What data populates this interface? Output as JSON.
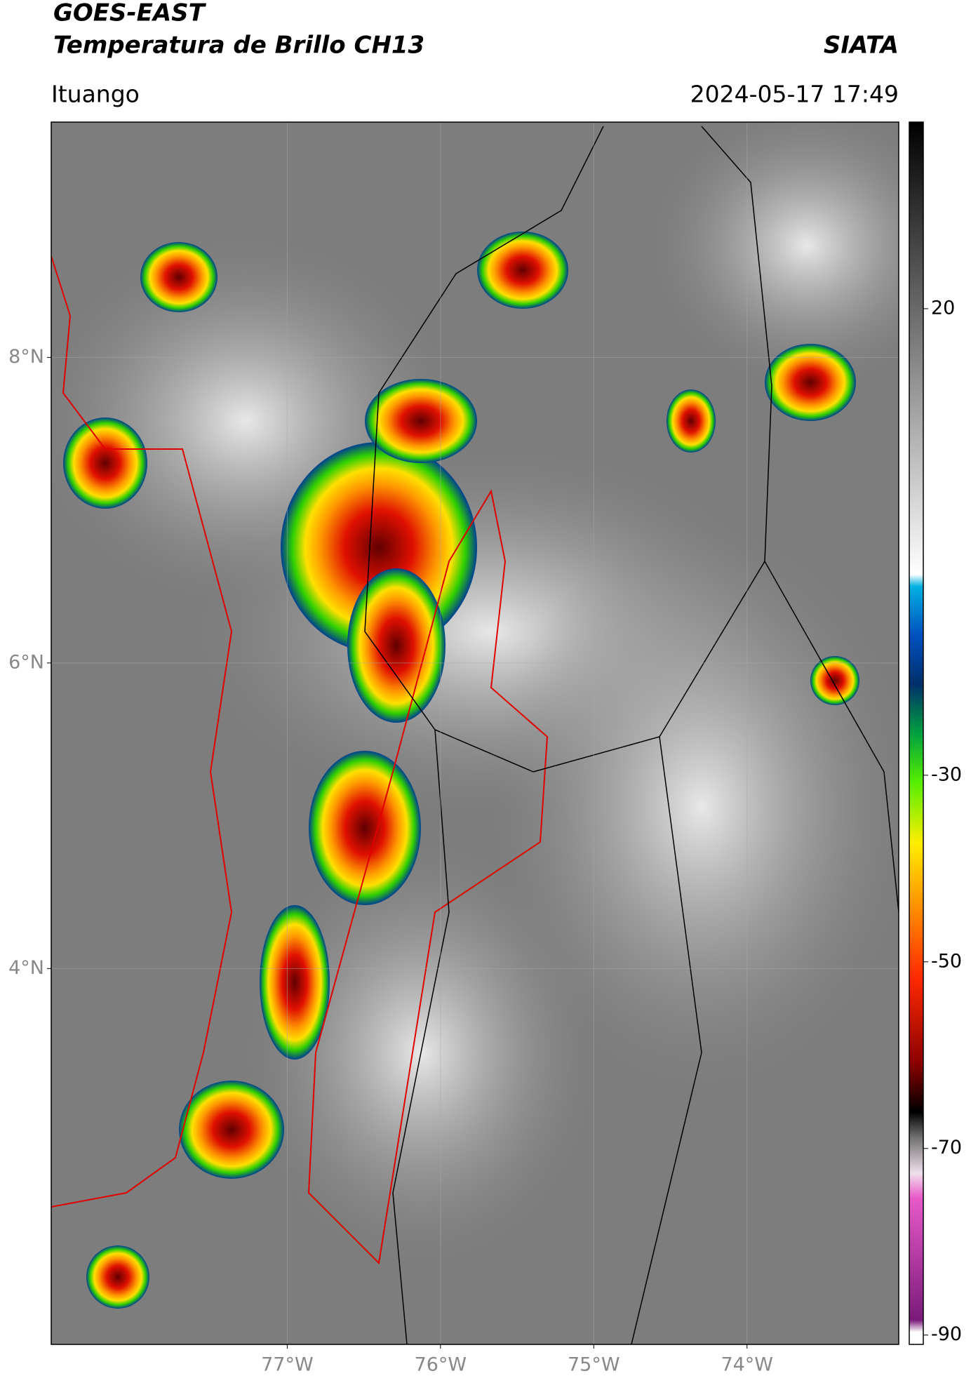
{
  "header": {
    "satellite": "GOES-EAST",
    "product": "Temperatura de Brillo CH13",
    "source": "SIATA",
    "location": "Ituango",
    "datetime": "2024-05-17 17:49"
  },
  "map": {
    "xlim": [
      -78.54,
      -73.01
    ],
    "ylim": [
      1.54,
      9.54
    ],
    "xticks": [
      {
        "value": -77,
        "label": "77°W"
      },
      {
        "value": -76,
        "label": "76°W"
      },
      {
        "value": -75,
        "label": "75°W"
      },
      {
        "value": -74,
        "label": "74°W"
      }
    ],
    "yticks": [
      {
        "value": 8,
        "label": "8°N"
      },
      {
        "value": 6,
        "label": "6°N"
      },
      {
        "value": 4,
        "label": "4°N"
      }
    ],
    "grid": true
  },
  "colorbar": {
    "lim": [
      -91,
      40
    ],
    "ticks": [
      20,
      -30,
      -50,
      -70,
      -90
    ]
  }
}
